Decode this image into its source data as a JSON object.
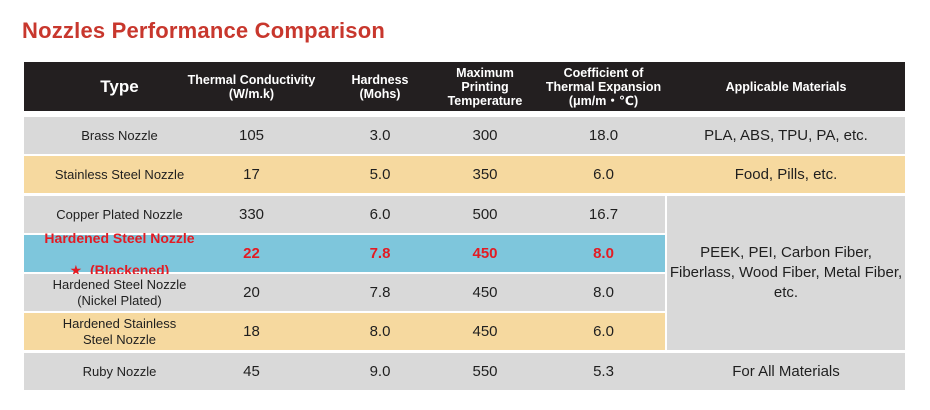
{
  "title": "Nozzles Performance Comparison",
  "colors": {
    "title": "#c8372d",
    "header_bg": "#231f20",
    "gray_row": "#d9d9d9",
    "tan_row": "#f6d99f",
    "highlight_row": "#7ec6dc",
    "highlight_text": "#e31b23"
  },
  "headers": {
    "type": "Type",
    "thermal_conductivity": "Thermal Conductivity\n(W/m.k)",
    "hardness": "Hardness\n(Mohs)",
    "max_temp": "Maximum\nPrinting\nTemperature",
    "expansion": "Coefficient of\nThermal Expansion\n(μm/m・℃)",
    "materials": "Applicable Materials"
  },
  "rows": [
    {
      "name": "Brass Nozzle",
      "conductivity": "105",
      "hardness": "3.0",
      "temperature": "300",
      "expansion": "18.0",
      "materials": "PLA, ABS, TPU, PA, etc."
    },
    {
      "name": "Stainless Steel Nozzle",
      "conductivity": "17",
      "hardness": "5.0",
      "temperature": "350",
      "expansion": "6.0",
      "materials": "Food, Pills, etc."
    },
    {
      "name": "Copper Plated Nozzle",
      "conductivity": "330",
      "hardness": "6.0",
      "temperature": "500",
      "expansion": "16.7"
    },
    {
      "name_line1": "Hardened Steel Nozzle",
      "name_star": "★",
      "name_line2": "(Blackened)",
      "conductivity": "22",
      "hardness": "7.8",
      "temperature": "450",
      "expansion": "8.0"
    },
    {
      "name": "Hardened Steel Nozzle\n(Nickel Plated)",
      "conductivity": "20",
      "hardness": "7.8",
      "temperature": "450",
      "expansion": "8.0"
    },
    {
      "name": "Hardened Stainless\nSteel Nozzle",
      "conductivity": "18",
      "hardness": "8.0",
      "temperature": "450",
      "expansion": "6.0"
    },
    {
      "name": "Ruby Nozzle",
      "conductivity": "45",
      "hardness": "9.0",
      "temperature": "550",
      "expansion": "5.3",
      "materials": "For All Materials"
    }
  ],
  "merged_materials": "PEEK, PEI, Carbon Fiber,\nFiberlass, Wood Fiber,\nMetal Fiber, etc."
}
